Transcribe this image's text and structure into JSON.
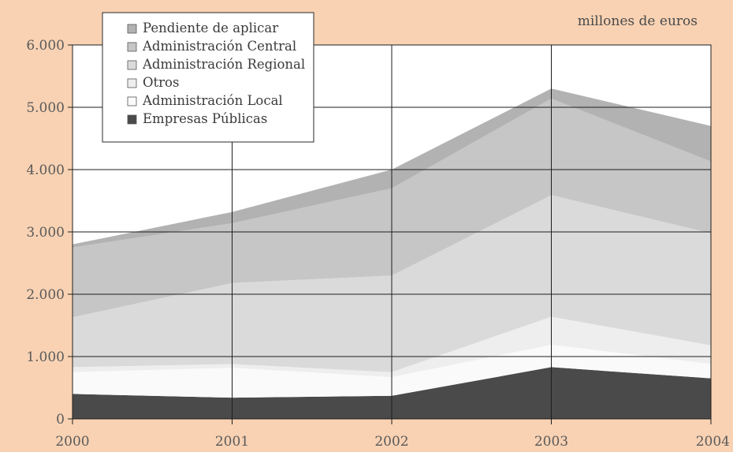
{
  "chart_data": {
    "type": "area",
    "stacked": true,
    "unit_label": "millones de euros",
    "x": [
      "2000",
      "2001",
      "2002",
      "2003",
      "2004"
    ],
    "y_ticks": [
      "0",
      "1.000",
      "2.000",
      "3.000",
      "4.000",
      "5.000",
      "6.000"
    ],
    "ylim": [
      0,
      6000
    ],
    "grid": true,
    "legend_position": "top-left",
    "colors": {
      "background": "#f8d2b3",
      "plot_background": "#ffffff",
      "grid": "#1e1e1e"
    },
    "series": [
      {
        "name": "Empresas Públicas",
        "color": "#4a4a4a",
        "values": [
          400,
          340,
          370,
          830,
          650
        ]
      },
      {
        "name": "Administración Local",
        "color": "#fafafa",
        "values": [
          350,
          480,
          300,
          360,
          230
        ]
      },
      {
        "name": "Otros",
        "color": "#eeeeee",
        "values": [
          80,
          60,
          80,
          450,
          300
        ]
      },
      {
        "name": "Administración Regional",
        "color": "#dadada",
        "values": [
          800,
          1300,
          1550,
          1950,
          1800
        ]
      },
      {
        "name": "Administración Central",
        "color": "#c6c6c6",
        "values": [
          1120,
          960,
          1400,
          1550,
          1150
        ]
      },
      {
        "name": "Pendiente de aplicar",
        "color": "#b2b2b2",
        "values": [
          50,
          180,
          300,
          160,
          570
        ]
      }
    ],
    "legend_order": [
      "Pendiente de aplicar",
      "Administración Central",
      "Administración Regional",
      "Otros",
      "Administración Local",
      "Empresas Públicas"
    ]
  }
}
